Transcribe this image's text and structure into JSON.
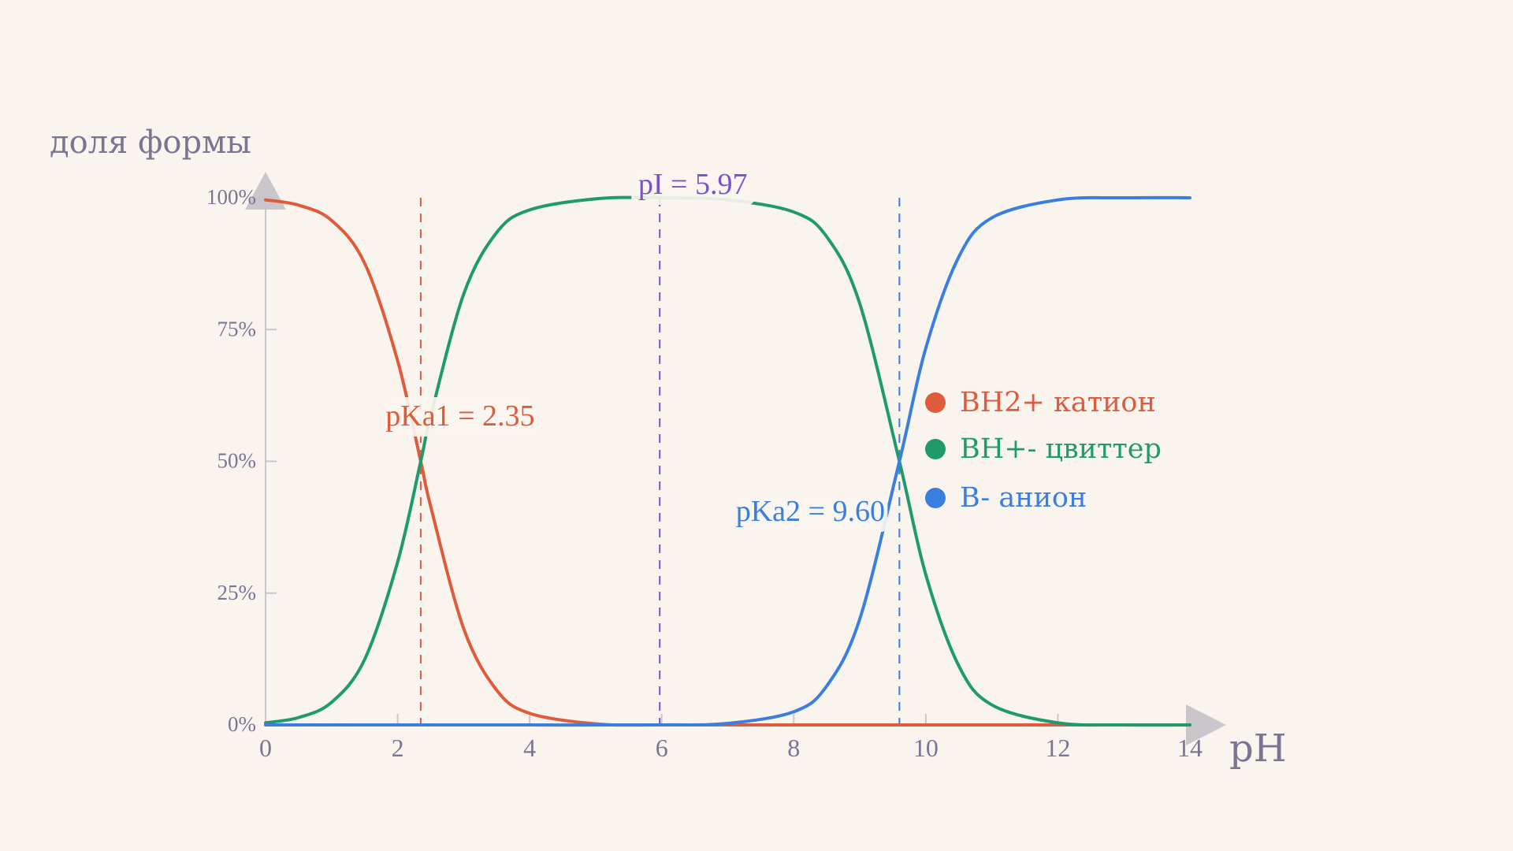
{
  "chart_data": {
    "type": "line",
    "title": "",
    "ylabel": "доля формы",
    "xlabel": "pH",
    "xlim": [
      0,
      14
    ],
    "ylim": [
      0,
      100
    ],
    "x_ticks": [
      0,
      2,
      4,
      6,
      8,
      10,
      12,
      14
    ],
    "y_ticks": [
      0,
      25,
      50,
      75,
      100
    ],
    "y_tick_labels": [
      "0%",
      "25%",
      "50%",
      "75%",
      "100%"
    ],
    "grid": false,
    "legend_position": "right",
    "pKa1": 2.35,
    "pKa2": 9.6,
    "pI": 5.97,
    "series": [
      {
        "name": "BH2+ катион",
        "color": "#e05a3c",
        "x": [
          0,
          0.5,
          1,
          1.5,
          2,
          2.35,
          2.5,
          3,
          3.5,
          4,
          5,
          6,
          8,
          10,
          12,
          14
        ],
        "values": [
          99.6,
          98.6,
          95.7,
          87.6,
          69.1,
          50.0,
          41.5,
          18.3,
          6.6,
          2.2,
          0.2,
          0.0,
          0.0,
          0.0,
          0.0,
          0.0
        ]
      },
      {
        "name": "BH+- цвиттер",
        "color": "#1f9a6a",
        "x": [
          0,
          0.5,
          1,
          1.5,
          2,
          2.35,
          2.5,
          3,
          3.5,
          4,
          5,
          5.97,
          7,
          8,
          8.5,
          9,
          9.6,
          10,
          10.5,
          11,
          12,
          13,
          14
        ],
        "values": [
          0.4,
          1.4,
          4.3,
          12.4,
          30.9,
          50.0,
          58.5,
          81.7,
          93.4,
          97.7,
          99.8,
          100.0,
          99.6,
          97.3,
          92.6,
          79.9,
          50.0,
          28.5,
          11.2,
          3.8,
          0.4,
          0.0,
          0.0
        ]
      },
      {
        "name": "B-  анион",
        "color": "#3a7fe0",
        "x": [
          0,
          2,
          4,
          6,
          7,
          8,
          8.5,
          9,
          9.6,
          10,
          10.5,
          11,
          12,
          13,
          14
        ],
        "values": [
          0.0,
          0.0,
          0.0,
          0.0,
          0.3,
          2.5,
          7.4,
          20.1,
          50.0,
          71.5,
          88.8,
          96.2,
          99.6,
          100.0,
          100.0
        ]
      }
    ],
    "annotations": {
      "pKa1_label": "pKa1 = 2.35",
      "pI_label": "pI = 5.97",
      "pKa2_label": "pKa2 = 9.60"
    }
  },
  "colors": {
    "background": "#faf4ee",
    "axis": "#c9c6cc",
    "text": "#7b7594",
    "cation": "#e05a3c",
    "zwitterion": "#1f9a6a",
    "anion": "#3a7fe0",
    "pI": "#7a52d0"
  }
}
